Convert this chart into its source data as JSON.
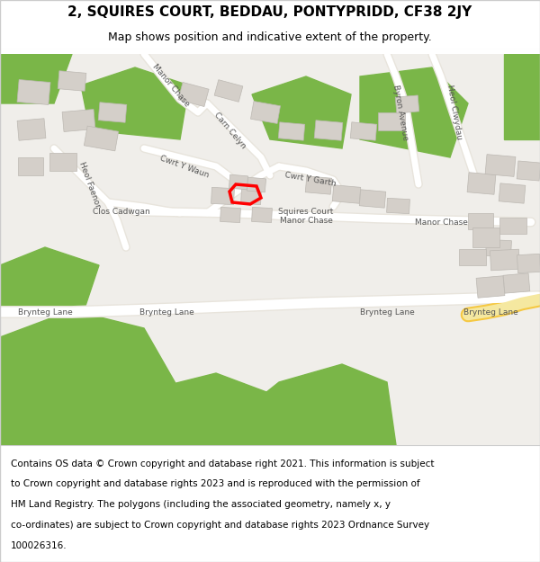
{
  "title_line1": "2, SQUIRES COURT, BEDDAU, PONTYPRIDD, CF38 2JY",
  "title_line2": "Map shows position and indicative extent of the property.",
  "footer_text": "Contains OS data © Crown copyright and database right 2021. This information is subject to Crown copyright and database rights 2023 and is reproduced with the permission of HM Land Registry. The polygons (including the associated geometry, namely x, y co-ordinates) are subject to Crown copyright and database rights 2023 Ordnance Survey 100026316.",
  "title_fontsize": 11,
  "subtitle_fontsize": 9,
  "footer_fontsize": 7.5,
  "map_bg_color": "#f0eeea",
  "road_color_main": "#ffffff",
  "road_color_secondary": "#f5f5f0",
  "green_area_color": "#7ab648",
  "building_color": "#d4cfc9",
  "building_edge_color": "#bcb8b2",
  "highlight_color": "#ff0000",
  "header_bg": "#ffffff",
  "footer_bg": "#ffffff",
  "border_color": "#cccccc"
}
